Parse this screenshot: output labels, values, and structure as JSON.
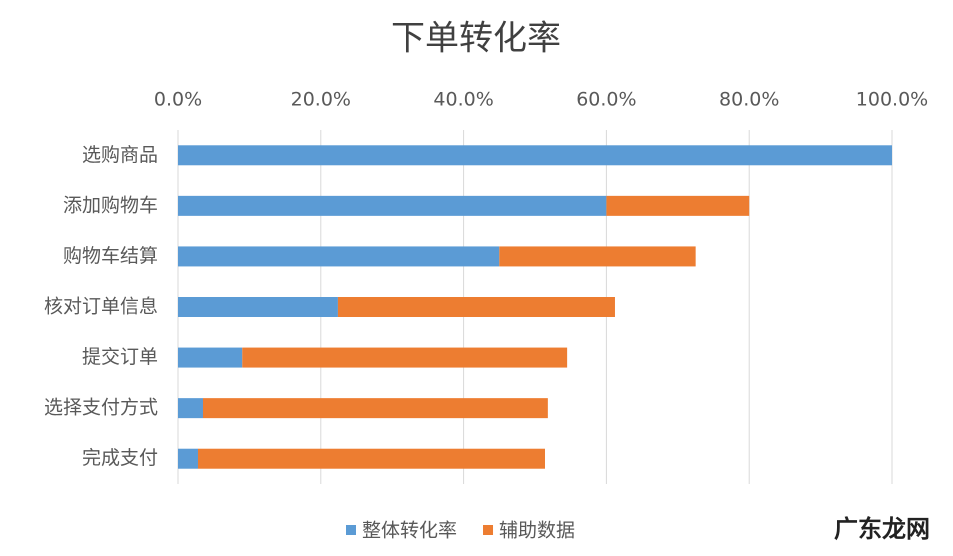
{
  "chart_data": {
    "type": "stacked-barh",
    "title": "下单转化率",
    "categories": [
      "选购商品",
      "添加购物车",
      "购物车结算",
      "核对订单信息",
      "提交订单",
      "选择支付方式",
      "完成支付"
    ],
    "series": [
      {
        "name": "整体转化率",
        "color": "#5b9bd5",
        "values": [
          100,
          60,
          45,
          22.4,
          9,
          3.5,
          2.8
        ]
      },
      {
        "name": "辅助数据",
        "color": "#ed7d31",
        "values": [
          0,
          20,
          27.5,
          38.8,
          45.5,
          48.3,
          48.6
        ]
      }
    ],
    "xlim": [
      0,
      100
    ],
    "xticks": [
      {
        "value": 0,
        "label": "0.0%"
      },
      {
        "value": 20,
        "label": "20.0%"
      },
      {
        "value": 40,
        "label": "40.0%"
      },
      {
        "value": 60,
        "label": "60.0%"
      },
      {
        "value": 80,
        "label": "80.0%"
      },
      {
        "value": 100,
        "label": "100.0%"
      }
    ],
    "grid": true,
    "legend": "bottom",
    "watermark": "广东龙网"
  }
}
